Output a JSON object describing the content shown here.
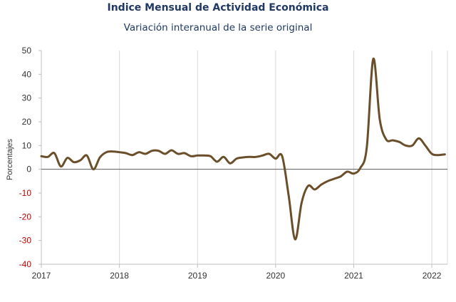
{
  "chart_data": {
    "type": "line",
    "title": "Indice Mensual de  Actividad Económica",
    "subtitle": "Variación interanual de la serie original",
    "ylabel": "Porcentajes",
    "xlabel": "",
    "ylim": [
      -40,
      50
    ],
    "y_ticks": [
      "50",
      "40",
      "30",
      "20",
      "10",
      "0",
      "-10",
      "-20",
      "-30",
      "-40"
    ],
    "x_ticks": [
      "2017",
      "2018",
      "2019",
      "2020",
      "2021",
      "2022"
    ],
    "grid": "vertical",
    "series": [
      {
        "color": "#6b4f2a",
        "x": [
          "2017-01",
          "2017-02",
          "2017-03",
          "2017-04",
          "2017-05",
          "2017-06",
          "2017-07",
          "2017-08",
          "2017-09",
          "2017-10",
          "2017-11",
          "2017-12",
          "2018-01",
          "2018-02",
          "2018-03",
          "2018-04",
          "2018-05",
          "2018-06",
          "2018-07",
          "2018-08",
          "2018-09",
          "2018-10",
          "2018-11",
          "2018-12",
          "2019-01",
          "2019-02",
          "2019-03",
          "2019-04",
          "2019-05",
          "2019-06",
          "2019-07",
          "2019-08",
          "2019-09",
          "2019-10",
          "2019-11",
          "2019-12",
          "2020-01",
          "2020-02",
          "2020-03",
          "2020-04",
          "2020-05",
          "2020-06",
          "2020-07",
          "2020-08",
          "2020-09",
          "2020-10",
          "2020-11",
          "2020-12",
          "2021-01",
          "2021-02",
          "2021-03",
          "2021-04",
          "2021-05",
          "2021-06",
          "2021-07",
          "2021-08",
          "2021-09",
          "2021-10",
          "2021-11",
          "2021-12",
          "2022-01",
          "2022-02",
          "2022-03"
        ],
        "values": [
          5.5,
          5.2,
          6.8,
          1.2,
          4.8,
          3.0,
          3.8,
          5.8,
          0.0,
          5.0,
          7.2,
          7.5,
          7.2,
          6.8,
          6.0,
          7.2,
          6.5,
          7.8,
          7.8,
          6.5,
          8.0,
          6.5,
          6.8,
          5.5,
          5.8,
          5.8,
          5.5,
          3.2,
          5.2,
          2.5,
          4.5,
          5.0,
          5.2,
          5.2,
          5.8,
          6.5,
          4.5,
          5.5,
          -11.0,
          -29.5,
          -14.0,
          -7.0,
          -8.5,
          -6.5,
          -5.0,
          -4.0,
          -3.0,
          -1.0,
          -1.8,
          0.5,
          9.0,
          46.5,
          21.0,
          12.5,
          12.2,
          11.5,
          10.0,
          10.0,
          13.0,
          10.0,
          6.5,
          6.0,
          6.3
        ]
      }
    ]
  },
  "colors": {
    "title": "#1f3864",
    "line": "#6b4f2a",
    "negative_tick": "#c00000",
    "tick": "#333333",
    "grid": "#d9d9d9"
  }
}
